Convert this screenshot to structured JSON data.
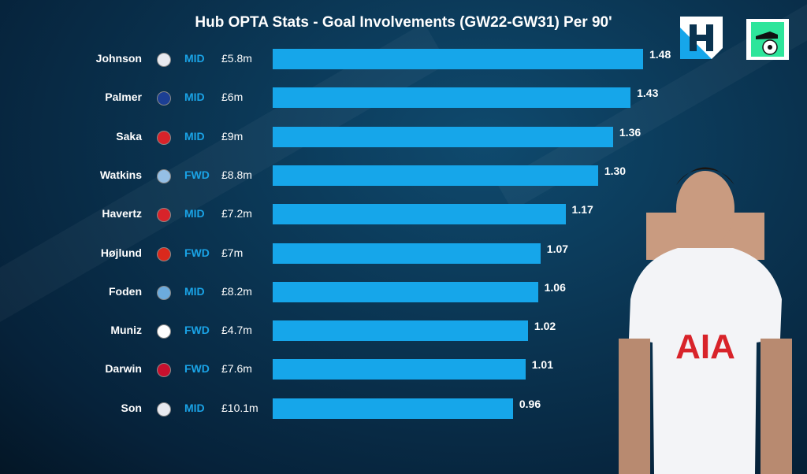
{
  "chart_data": {
    "type": "bar",
    "orientation": "horizontal",
    "title": "Hub OPTA Stats - Goal Involvements (GW22-GW31) Per 90'",
    "xlim": [
      0,
      1.48
    ],
    "rows": [
      {
        "name": "Johnson",
        "club": "Tottenham",
        "pos": "MID",
        "price": "£5.8m",
        "value": 1.48,
        "label": "1.48"
      },
      {
        "name": "Palmer",
        "club": "Chelsea",
        "pos": "MID",
        "price": "£6m",
        "value": 1.43,
        "label": "1.43"
      },
      {
        "name": "Saka",
        "club": "Arsenal",
        "pos": "MID",
        "price": "£9m",
        "value": 1.36,
        "label": "1.36"
      },
      {
        "name": "Watkins",
        "club": "Aston Villa",
        "pos": "FWD",
        "price": "£8.8m",
        "value": 1.3,
        "label": "1.30"
      },
      {
        "name": "Havertz",
        "club": "Arsenal",
        "pos": "MID",
        "price": "£7.2m",
        "value": 1.17,
        "label": "1.17"
      },
      {
        "name": "Højlund",
        "club": "Man Utd",
        "pos": "FWD",
        "price": "£7m",
        "value": 1.07,
        "label": "1.07"
      },
      {
        "name": "Foden",
        "club": "Man City",
        "pos": "MID",
        "price": "£8.2m",
        "value": 1.06,
        "label": "1.06"
      },
      {
        "name": "Muniz",
        "club": "Fulham",
        "pos": "FWD",
        "price": "£4.7m",
        "value": 1.02,
        "label": "1.02"
      },
      {
        "name": "Darwin",
        "club": "Liverpool",
        "pos": "FWD",
        "price": "£7.6m",
        "value": 1.01,
        "label": "1.01"
      },
      {
        "name": "Son",
        "club": "Tottenham",
        "pos": "MID",
        "price": "£10.1m",
        "value": 0.96,
        "label": "0.96"
      }
    ],
    "bar_color": "#16a6ea",
    "club_colors": {
      "Tottenham": "#e8eaf0",
      "Chelsea": "#1c3f94",
      "Arsenal": "#d8232a",
      "Aston Villa": "#95bfe5",
      "Man Utd": "#da291c",
      "Man City": "#6cabdd",
      "Fulham": "#ffffff",
      "Liverpool": "#c8102e"
    }
  },
  "player_shirt": {
    "sponsor": "AIA"
  }
}
